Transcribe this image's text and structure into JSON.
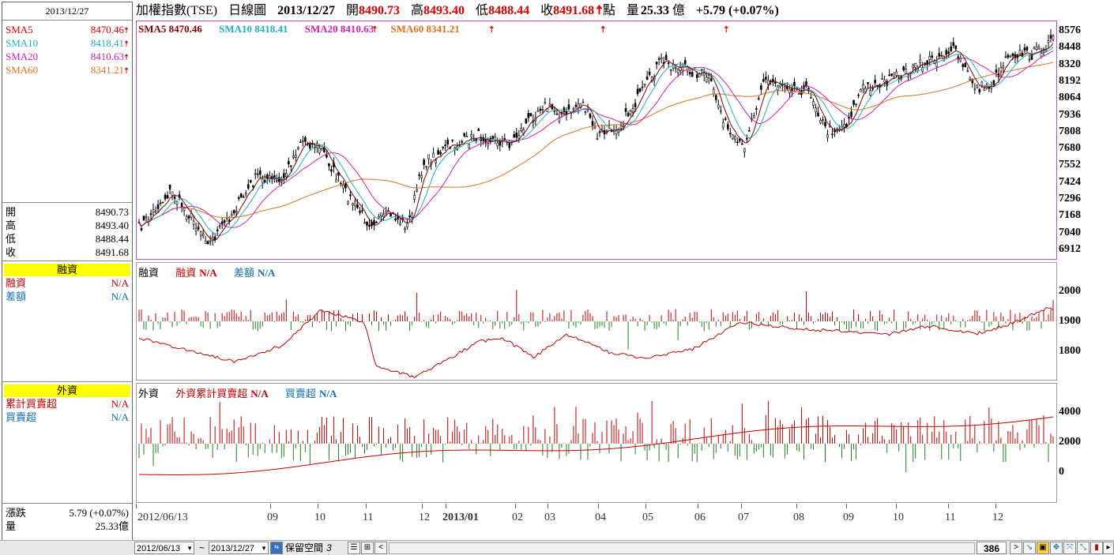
{
  "left": {
    "date": "2013/12/27",
    "sma": [
      {
        "label": "SMA5",
        "value": "8470.46",
        "color": "#e00000"
      },
      {
        "label": "SMA10",
        "value": "8418.41",
        "color": "#20b0c0"
      },
      {
        "label": "SMA20",
        "value": "8410.63",
        "color": "#d020b0"
      },
      {
        "label": "SMA60",
        "value": "8341.21",
        "color": "#e07020"
      }
    ],
    "ohlc": [
      {
        "label": "開",
        "value": "8490.73"
      },
      {
        "label": "高",
        "value": "8493.40"
      },
      {
        "label": "低",
        "value": "8488.44"
      },
      {
        "label": "收",
        "value": "8491.68"
      }
    ],
    "margin_header": "融資",
    "margin_rows": [
      {
        "label": "融資",
        "value": "N/A",
        "color": "#c00000"
      },
      {
        "label": "差額",
        "value": "N/A",
        "color": "#1070b0"
      }
    ],
    "foreign_header": "外資",
    "foreign_rows": [
      {
        "label": "累計買賣超",
        "value": "N/A",
        "color": "#c00000"
      },
      {
        "label": "買賣超",
        "value": "N/A",
        "color": "#1070b0"
      }
    ],
    "bottom_rows": [
      {
        "label": "漲跌",
        "value": "5.79 (+0.07%)"
      },
      {
        "label": "量",
        "value": "25.33億"
      }
    ]
  },
  "title": {
    "name": "加權指數(TSE)",
    "period": "日線圖",
    "date": "2013/12/27",
    "open_label": "開",
    "open": "8490.73",
    "high_label": "高",
    "high": "8493.40",
    "low_label": "低",
    "low": "8488.44",
    "close_label": "收",
    "close": "8491.68",
    "unit": "點",
    "vol_label": "量",
    "vol": "25.33",
    "vol_unit": "億",
    "change": "+5.79 (+0.07%)"
  },
  "price_legend": [
    {
      "text": "SMA5 8470.46",
      "color": "#800000"
    },
    {
      "text": "SMA10 8418.41",
      "color": "#20b0c0"
    },
    {
      "text": "SMA20 8410.63",
      "color": "#d020b0"
    },
    {
      "text": "SMA60 8341.21",
      "color": "#e07020"
    }
  ],
  "price_axis": [
    "8576",
    "8448",
    "8320",
    "8192",
    "8064",
    "7936",
    "7808",
    "7680",
    "7552",
    "7424",
    "7296",
    "7168",
    "7040",
    "6912"
  ],
  "margin_legend": {
    "title": "融資",
    "a": "融資",
    "a_val": "N/A",
    "b": "差額",
    "b_val": "N/A"
  },
  "margin_axis": [
    "2000",
    "1900",
    "1800"
  ],
  "foreign_legend": {
    "title": "外資",
    "a": "外資累計買賣超",
    "a_val": "N/A",
    "b": "買賣超",
    "b_val": "N/A"
  },
  "foreign_axis": [
    "4000",
    "2000",
    "0"
  ],
  "x_axis": [
    {
      "label": "2012/06/13",
      "bold": false
    },
    {
      "label": "09",
      "bold": false
    },
    {
      "label": "10",
      "bold": false
    },
    {
      "label": "11",
      "bold": false
    },
    {
      "label": "12",
      "bold": false
    },
    {
      "label": "2013/01",
      "bold": true
    },
    {
      "label": "02",
      "bold": false
    },
    {
      "label": "03",
      "bold": false
    },
    {
      "label": "04",
      "bold": false
    },
    {
      "label": "05",
      "bold": false
    },
    {
      "label": "06",
      "bold": false
    },
    {
      "label": "07",
      "bold": false
    },
    {
      "label": "08",
      "bold": false
    },
    {
      "label": "09",
      "bold": false
    },
    {
      "label": "10",
      "bold": false
    },
    {
      "label": "11",
      "bold": false
    },
    {
      "label": "12",
      "bold": false
    }
  ],
  "toolbar": {
    "start_date": "2012/06/13",
    "tilde": "~",
    "end_date": "2013/12/27",
    "reserve_label": "保留空間",
    "reserve_value": "3",
    "count": "386"
  }
}
